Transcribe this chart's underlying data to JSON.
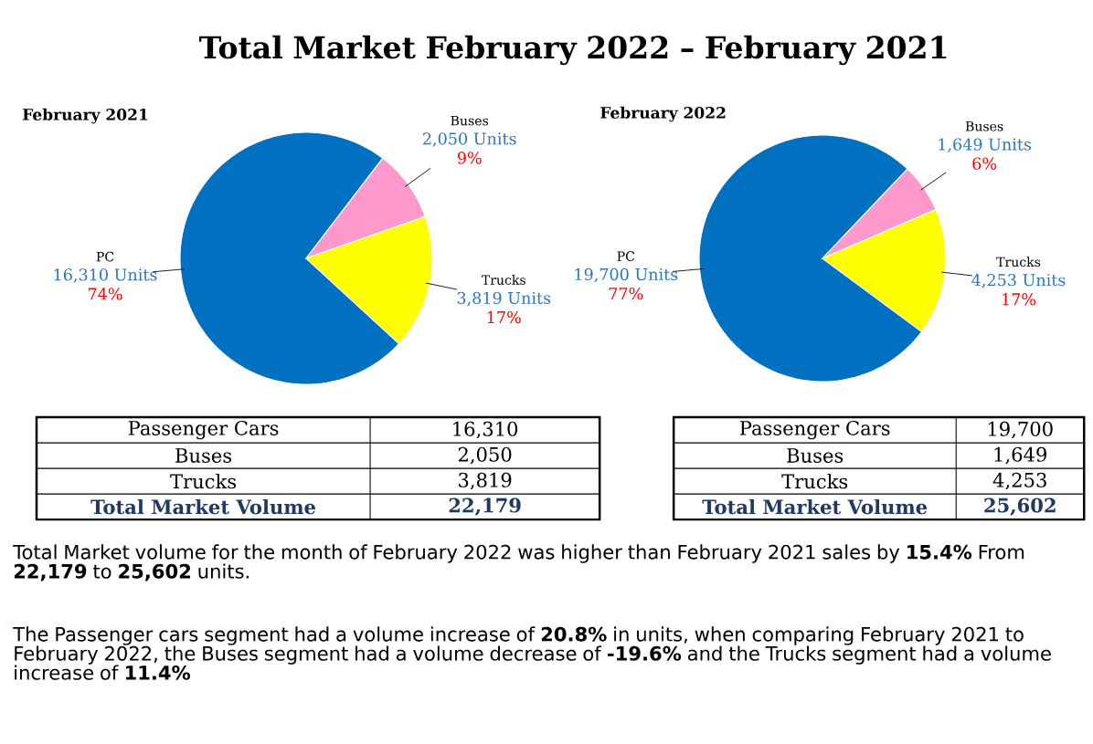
{
  "chart_data": [
    {
      "type": "other",
      "title": "Total Market February 2022 – February 2021",
      "annotations": [
        "Total Market volume for the month of February 2022 was higher than February 2021 sales by **15.4%** From **22,179** to **25,602** units.",
        "The Passenger cars segment had a volume increase of **20.8%** in units, when comparing February 2021 to February 2022, the Buses segment had a volume decrease of **-19.6%** and the Trucks segment had a volume increase of **11.4%**"
      ]
    },
    {
      "type": "pie",
      "title": "February 2021",
      "categories": [
        "PC",
        "Buses",
        "Trucks"
      ],
      "values": [
        16310,
        2050,
        3819
      ],
      "colors": [
        "#0070c0",
        "#ff99cc",
        "#ffff00"
      ],
      "value_labels": [
        "16,310 Units",
        "2,050 Units",
        "3,819 Units"
      ],
      "annotations": [
        {
          "text": "74%",
          "x": "PC"
        },
        {
          "text": "9%",
          "x": "Buses"
        },
        {
          "text": "17%",
          "x": "Trucks"
        },
        "Passenger Cars",
        "16,310",
        "Buses",
        "2,050",
        "Trucks",
        "3,819",
        "Total Market Volume",
        "22,179"
      ]
    },
    {
      "type": "pie",
      "title": "February 2022",
      "categories": [
        "PC",
        "Buses",
        "Trucks"
      ],
      "values": [
        19700,
        1649,
        4253
      ],
      "colors": [
        "#0070c0",
        "#ff99cc",
        "#ffff00"
      ],
      "value_labels": [
        "19,700 Units",
        "1,649 Units",
        "4,253 Units"
      ],
      "annotations": [
        {
          "text": "77%",
          "x": "PC"
        },
        {
          "text": "6%",
          "x": "Buses"
        },
        {
          "text": "17%",
          "x": "Trucks"
        },
        "Passenger Cars",
        "19,700",
        "Buses",
        "1,649",
        "Trucks",
        "4,253",
        "Total Market Volume",
        "25,602"
      ]
    }
  ]
}
